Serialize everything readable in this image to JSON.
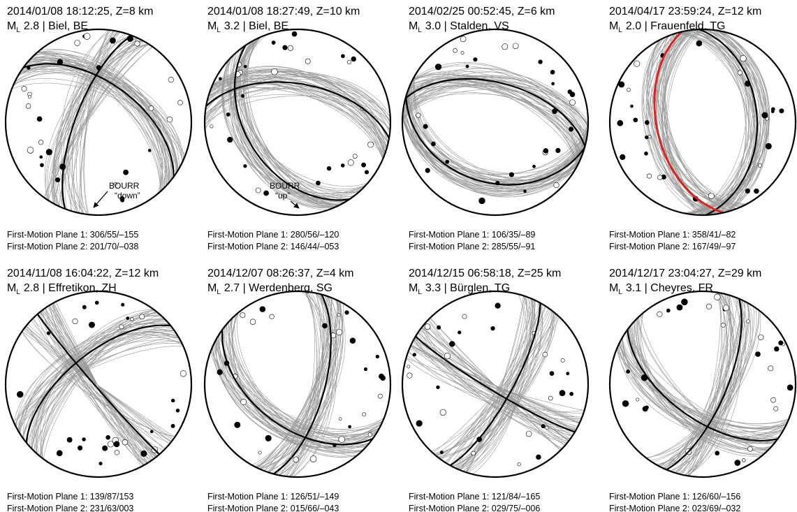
{
  "panels": [
    {
      "title": "2014/01/08 18:12:25, Z=8 km",
      "mag_symbol": "M",
      "mag_sub": "L",
      "mag_text": "2.8 | Biel, BE",
      "plane1": "First-Motion Plane 1: 306/55/–155",
      "plane2": "First-Motion Plane 2: 201/70/–038",
      "annotation": {
        "line1": "BOURR",
        "line2": "“down”"
      }
    },
    {
      "title": "2014/01/08 18:27:49, Z=10 km",
      "mag_symbol": "M",
      "mag_sub": "L",
      "mag_text": "3.2 | Biel, BE",
      "plane1": "First-Motion Plane 1: 280/56/–120",
      "plane2": "First-Motion Plane 2: 146/44/–053",
      "annotation": {
        "line1": "BOURR",
        "line2": "“up”"
      }
    },
    {
      "title": "2014/02/25 00:52:45, Z=6 km",
      "mag_symbol": "M",
      "mag_sub": "L",
      "mag_text": "3.0 | Stalden, VS",
      "plane1": "First-Motion Plane 1: 106/35/–89",
      "plane2": "First-Motion Plane 2: 285/55/–91"
    },
    {
      "title": "2014/04/17 23:59:24, Z=12 km",
      "mag_symbol": "M",
      "mag_sub": "L",
      "mag_text": "2.0 | Frauenfeld, TG",
      "plane1": "First-Motion Plane 1: 358/41/–82",
      "plane2": "First-Motion Plane 2: 167/49/–97"
    },
    {
      "title": "2014/11/08 16:04:22, Z=12 km",
      "mag_symbol": "M",
      "mag_sub": "L",
      "mag_text": "2.8 | Effretikon, ZH",
      "plane1": "First-Motion Plane 1: 139/87/153",
      "plane2": "First-Motion Plane 2: 231/63/003"
    },
    {
      "title": "2014/12/07 08:26:37, Z=4 km",
      "mag_symbol": "M",
      "mag_sub": "L",
      "mag_text": "2.7 | Werdenberg, SG",
      "plane1": "First-Motion Plane 1: 126/51/–149",
      "plane2": "First-Motion Plane 2: 015/66/–043"
    },
    {
      "title": "2014/12/15 06:58:18, Z=25 km",
      "mag_symbol": "M",
      "mag_sub": "L",
      "mag_text": "3.3 | Bürglen, TG",
      "plane1": "First-Motion Plane 1: 121/84/–165",
      "plane2": "First-Motion Plane 2: 029/75/–006"
    },
    {
      "title": "2014/12/17 23:04:27, Z=29 km",
      "mag_symbol": "M",
      "mag_sub": "L",
      "mag_text": "3.1 | Cheyres, FR",
      "plane1": "First-Motion Plane 1: 126/60/–156",
      "plane2": "First-Motion Plane 2: 023/69/–032"
    }
  ]
}
